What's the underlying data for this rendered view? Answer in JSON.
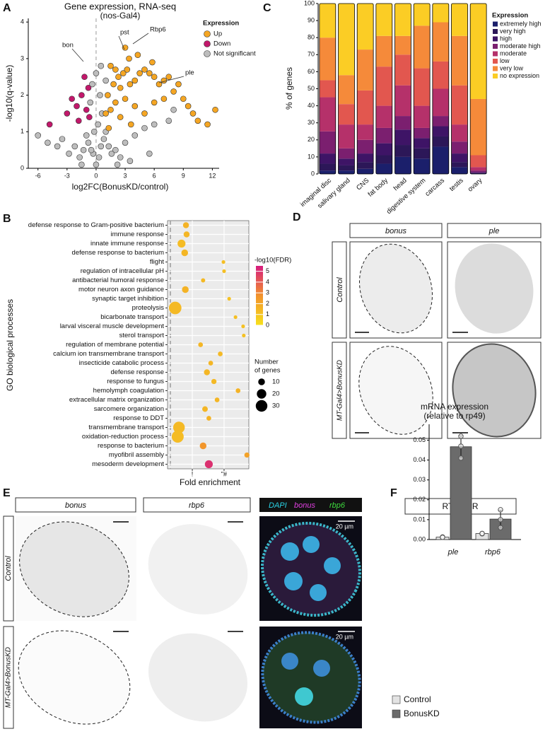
{
  "figure": {
    "panels": [
      "A",
      "B",
      "C",
      "D",
      "E",
      "F"
    ],
    "D": {
      "columns": [
        "bonus",
        "ple"
      ],
      "rows": [
        "Control",
        "MT-Gal4>BonusKD"
      ]
    },
    "E": {
      "columns": [
        "bonus",
        "rbp6"
      ],
      "stain": [
        "DAPI",
        "bonus",
        "rbp6"
      ],
      "rows": [
        "Control",
        "MT-Gal4>BonusKD"
      ],
      "scale_bar": "20 µm"
    }
  },
  "chart_data": [
    {
      "type": "scatter",
      "title": "Gene expression, RNA-seq",
      "subtitle": "(nos-Gal4)",
      "x_label": "log2FC(BonusKD/control)",
      "y_label": "-log10(q-value)",
      "xlim": [
        -7,
        12.7
      ],
      "ylim": [
        0,
        4.1
      ],
      "xticks": [
        -6,
        -3,
        0,
        3,
        6,
        9,
        12
      ],
      "yticks": [
        0,
        1,
        2,
        3,
        4
      ],
      "legend_title": "Expression",
      "legend": "top-right",
      "annotations": [
        "pst",
        "Rbp6",
        "ple",
        "bon"
      ],
      "series": [
        {
          "name": "Up",
          "color": "#f5a623",
          "x": [
            1.5,
            2,
            2.3,
            2.8,
            3.2,
            1.8,
            2.5,
            3.5,
            4,
            4.5,
            5,
            5.5,
            6,
            6.5,
            7,
            7.5,
            8,
            8.5,
            9,
            9.5,
            10,
            10.5,
            11.5,
            12.3,
            3,
            3.4,
            4.3,
            5.8,
            1.2,
            2,
            3,
            4,
            1,
            1.5,
            2.5,
            6,
            7,
            5,
            3.6,
            1.3
          ],
          "values": [
            2.8,
            2.7,
            2.5,
            2.6,
            2.7,
            2.3,
            2.2,
            2.3,
            2.4,
            2.6,
            2.7,
            2.6,
            2.5,
            2.3,
            2.4,
            2.5,
            2.1,
            2.3,
            1.9,
            1.7,
            1.5,
            1.3,
            1.2,
            1.6,
            3.3,
            3.0,
            3.1,
            2.9,
            2.0,
            1.8,
            1.9,
            1.7,
            1.5,
            1.6,
            1.4,
            1.8,
            1.9,
            1.5,
            1.2,
            1.1
          ]
        },
        {
          "name": "Down",
          "color": "#c2186b",
          "x": [
            -1.2,
            -0.8,
            -1.5,
            -2.5,
            -1,
            -2,
            -0.7,
            -4.8,
            -3,
            -1.8
          ],
          "values": [
            2.5,
            2.2,
            2.0,
            1.9,
            1.6,
            1.7,
            1.4,
            1.2,
            1.5,
            1.3
          ]
        },
        {
          "name": "Not significant",
          "color": "#bdbdbd",
          "x": [
            0,
            0.3,
            -0.3,
            0.5,
            -0.5,
            0.8,
            -0.8,
            1,
            -1,
            1.3,
            -1.3,
            0.2,
            -0.2,
            1.6,
            -1.7,
            2,
            -2.2,
            2.5,
            -2.8,
            3,
            -3.5,
            3.5,
            -4,
            4,
            -5,
            5,
            -6,
            6,
            7.5,
            8,
            0.6,
            -0.6,
            0.4,
            -0.4,
            0,
            1,
            0.5,
            2.2,
            -1.5,
            5.5
          ],
          "values": [
            0.1,
            0.3,
            0.4,
            0.6,
            0.5,
            0.8,
            0.7,
            1,
            0.9,
            0.6,
            0.5,
            1.2,
            1.0,
            0.4,
            0.3,
            0.5,
            0.6,
            0.3,
            0.4,
            0.7,
            0.8,
            0.2,
            0.6,
            0.9,
            0.7,
            1.1,
            0.9,
            1.2,
            1.3,
            1.6,
            1.5,
            1.8,
            2.0,
            2.3,
            2.6,
            2.4,
            2.8,
            0.1,
            0.1,
            0.4
          ]
        }
      ]
    },
    {
      "type": "dot",
      "x_label": "Fold enrichment",
      "y_label": "GO biological processes",
      "xlim": [
        1.1,
        13.9
      ],
      "xticks": [
        {
          "value": 5,
          "label": "!"
        },
        {
          "value": 10,
          "label": "\"#"
        }
      ],
      "grid": true,
      "categories": [
        "defense response to Gram-positive bacterium",
        "immune response",
        "innate immune response",
        "defense response to bacterium",
        "flight",
        "regulation of intracellular pH",
        "antibacterial humoral response",
        "motor neuron axon guidance",
        "synaptic target inhibition",
        "proteolysis",
        "bicarbonate transport",
        "larval visceral muscle development",
        "sterol transport",
        "regulation of membrane potential",
        "calcium ion transmembrane transport",
        "insecticide catabolic process",
        "defense response",
        "response to fungus",
        "hemolymph coagulation",
        "extracellular matrix organization",
        "sarcomere organization",
        "response to DDT",
        "transmembrane transport",
        "oxidation-reduction process",
        "response to bacterium",
        "myofibril assembly",
        "mesoderm development"
      ],
      "values": [
        4.0,
        4.1,
        3.3,
        3.8,
        9.9,
        10.0,
        6.7,
        3.9,
        10.8,
        2.3,
        11.8,
        13.0,
        13.1,
        6.3,
        9.4,
        7.9,
        7.3,
        8.4,
        12.2,
        8.9,
        7.0,
        7.6,
        2.9,
        2.7,
        6.7,
        13.6,
        7.6
      ],
      "sizes": [
        8,
        8,
        14,
        10,
        3,
        3,
        4,
        10,
        3,
        35,
        3,
        3,
        3,
        5,
        5,
        5,
        8,
        6,
        5,
        5,
        7,
        5,
        30,
        32,
        10,
        6,
        14
      ],
      "color_values": [
        1.6,
        1.5,
        1.3,
        1.5,
        1.2,
        1.2,
        1.4,
        1.6,
        1.1,
        1.4,
        1.2,
        1.1,
        1.1,
        1.5,
        1.4,
        1.5,
        1.5,
        1.4,
        1.6,
        1.5,
        1.5,
        1.6,
        1.4,
        1.3,
        2.6,
        2.2,
        5.0
      ],
      "color_label": "-log10(FDR)",
      "color_lim": [
        0,
        5.5
      ],
      "color_ticks": [
        0,
        1,
        2,
        3,
        4,
        5
      ],
      "color_range": [
        "#f7e11d",
        "#f2922c",
        "#d61b7f"
      ],
      "size_label": [
        "Number",
        "of genes"
      ],
      "size_ticks": [
        10,
        20,
        30
      ]
    },
    {
      "type": "stacked_bar",
      "y_label": "% of genes",
      "ylim": [
        0,
        100
      ],
      "yticks": [
        0,
        10,
        20,
        30,
        40,
        50,
        60,
        70,
        80,
        90,
        100
      ],
      "legend_title": "Expression",
      "legend": "right",
      "categories": [
        "imaginal disc",
        "salivary gland",
        "CNS",
        "fat body",
        "head",
        "digestive system",
        "carcass",
        "testis",
        "ovary"
      ],
      "series": [
        {
          "name": "extremely high",
          "color": "#1b1f6b",
          "values": [
            2,
            2,
            3,
            6,
            10,
            9,
            16,
            4,
            0.2
          ]
        },
        {
          "name": "very high",
          "color": "#2c1758",
          "values": [
            4,
            3,
            4,
            5,
            7,
            6,
            6,
            3,
            0.3
          ]
        },
        {
          "name": "high",
          "color": "#3e1466",
          "values": [
            6,
            4,
            5,
            7,
            9,
            6,
            6,
            5,
            0.5
          ]
        },
        {
          "name": "moderate high",
          "color": "#7b1f6f",
          "values": [
            13,
            6,
            8,
            9,
            8,
            6,
            6,
            7,
            1
          ]
        },
        {
          "name": "moderate",
          "color": "#b5316a",
          "values": [
            20,
            14,
            9,
            13,
            18,
            13,
            16,
            10,
            2
          ]
        },
        {
          "name": "low",
          "color": "#e2574f",
          "values": [
            10,
            12,
            20,
            23,
            18,
            22,
            16,
            23,
            7
          ]
        },
        {
          "name": "very low",
          "color": "#f58a3a",
          "values": [
            25,
            17,
            24,
            18,
            11,
            25,
            23,
            29,
            33
          ]
        },
        {
          "name": "no expression",
          "color": "#fbcd25",
          "values": [
            20,
            42,
            27,
            19,
            19,
            13,
            11,
            19,
            56
          ]
        }
      ]
    },
    {
      "type": "bar",
      "title": "RT-qPCR",
      "subtitle": [
        "mRNA expression",
        "(relative to rp49)"
      ],
      "categories": [
        "ple",
        "rbp6"
      ],
      "ylim": [
        0,
        0.058
      ],
      "yticks": [
        {
          "value": 0,
          "label": "0.00"
        },
        0.01,
        0.02,
        0.03,
        0.04,
        0.05
      ],
      "legend": "bottom-left",
      "series": [
        {
          "name": "Control",
          "color": "#e3e3e3",
          "values": [
            0.0012,
            0.003
          ],
          "errors": [
            0.0001,
            0.0001
          ],
          "points": [
            [
              0.0012,
              0.0013,
              0.0011
            ],
            [
              0.003,
              0.0029,
              0.0031
            ]
          ]
        },
        {
          "name": "BonusKD",
          "color": "#6b6b6b",
          "values": [
            0.0467,
            0.0103
          ],
          "errors": [
            0.0055,
            0.0045
          ],
          "points": [
            [
              0.052,
              0.047,
              0.041
            ],
            [
              0.015,
              0.01,
              0.006
            ]
          ]
        }
      ]
    }
  ]
}
